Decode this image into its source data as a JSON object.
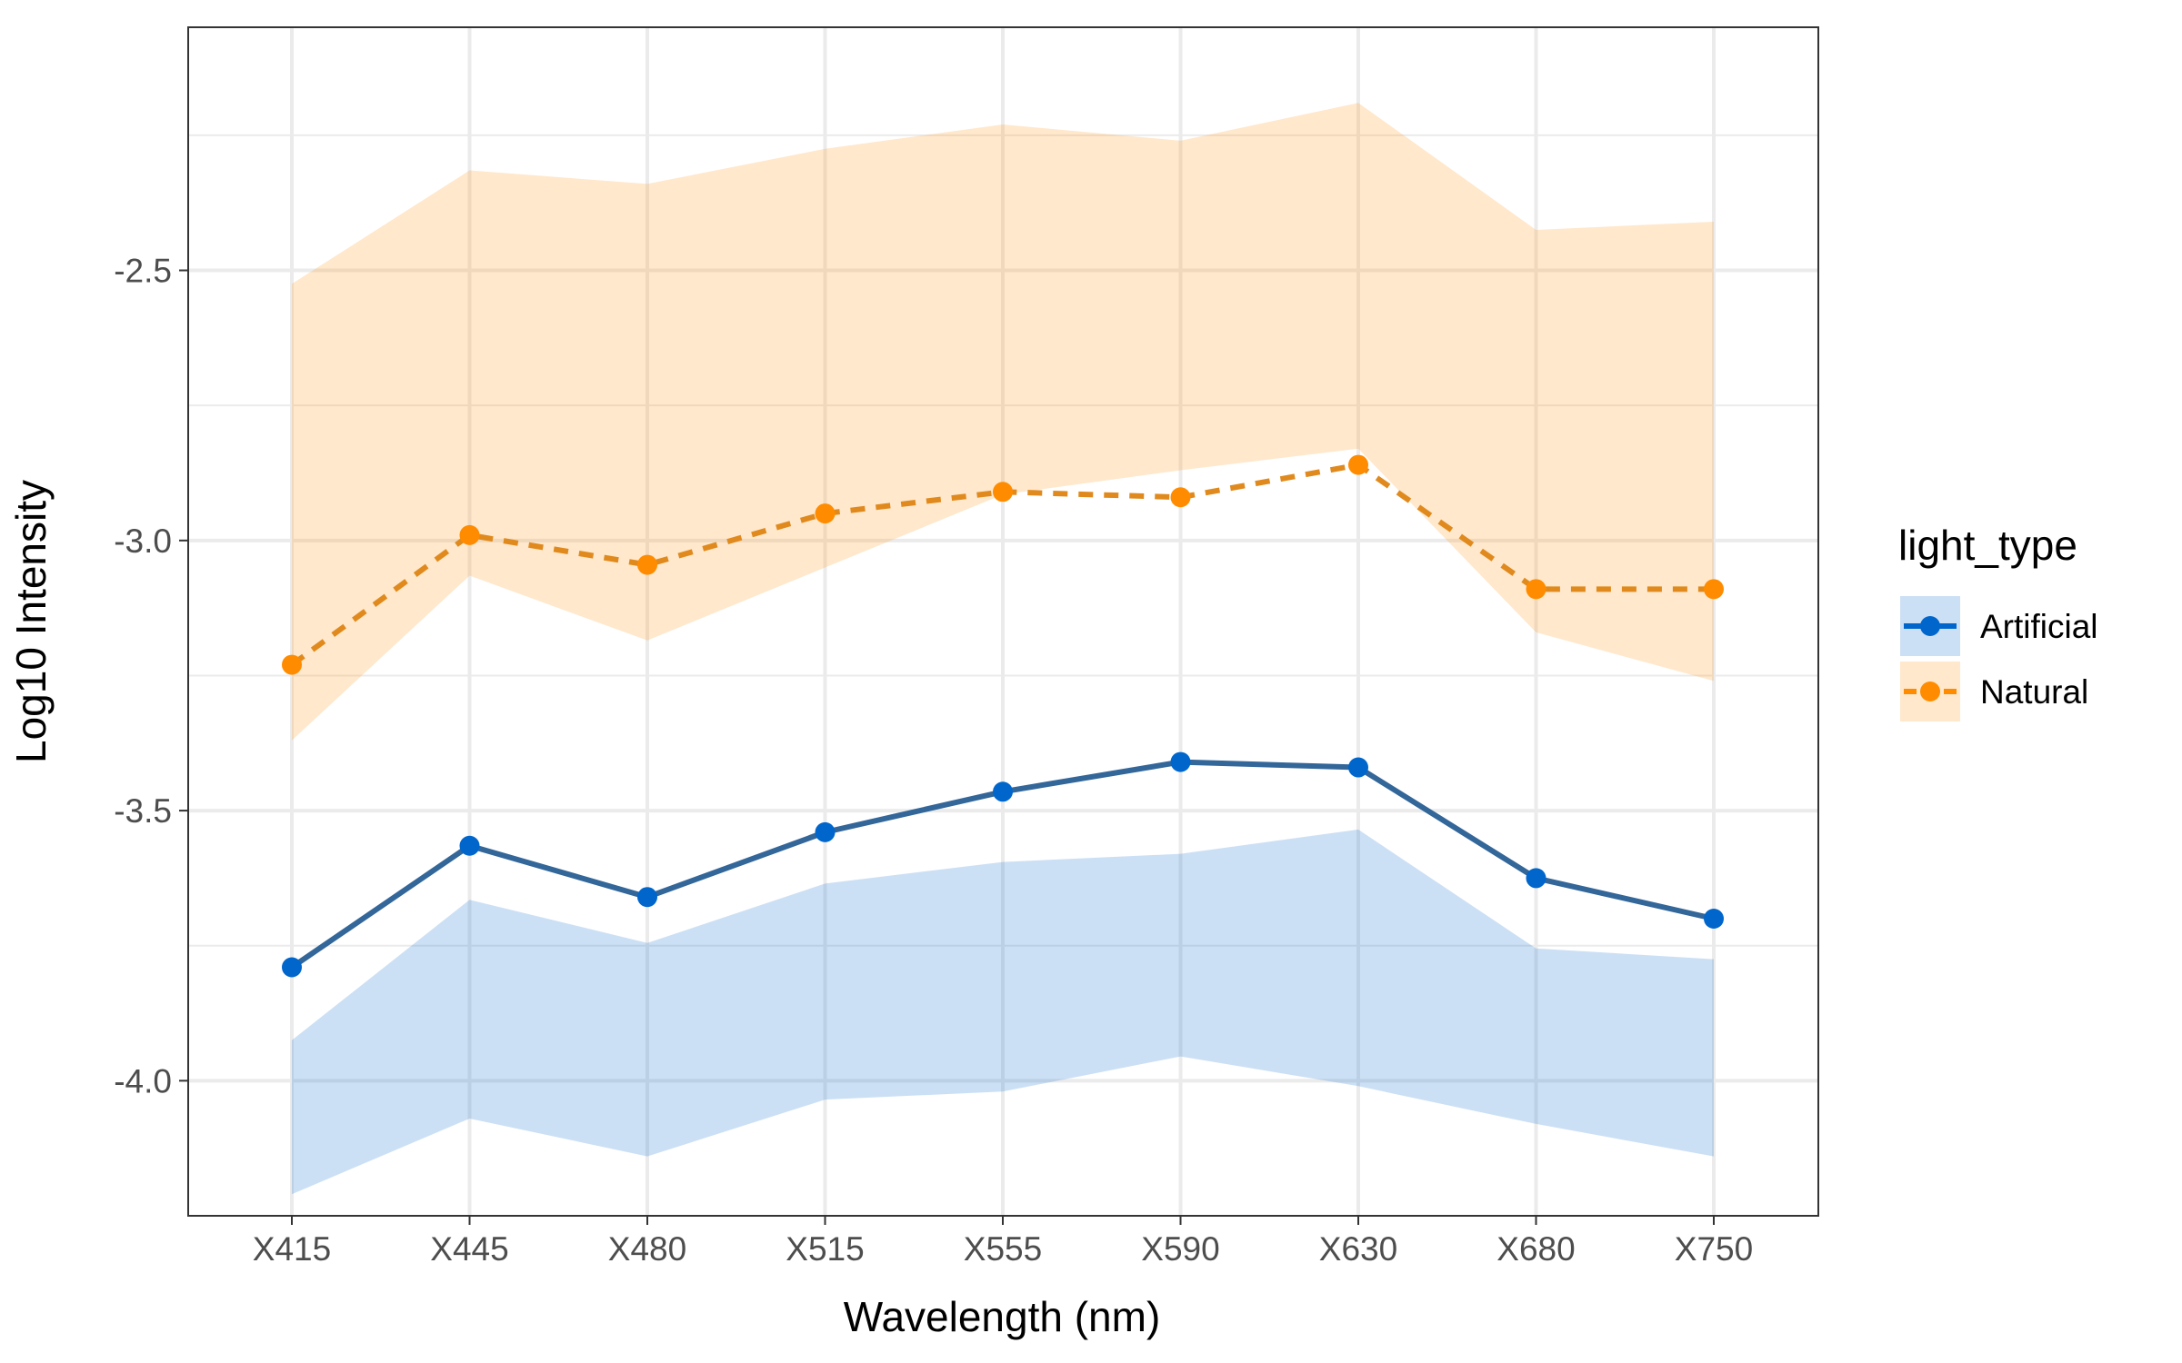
{
  "chart_data": {
    "type": "line",
    "title": "",
    "xlabel": "Wavelength (nm)",
    "ylabel": "Log10 Intensity",
    "categories": [
      "X415",
      "X445",
      "X480",
      "X515",
      "X555",
      "X590",
      "X630",
      "X680",
      "X750"
    ],
    "ylim": [
      -4.25,
      -2.05
    ],
    "y_ticks": [
      -4.0,
      -3.5,
      -3.0,
      -2.5
    ],
    "y_tick_labels": [
      "-4.0",
      "-3.5",
      "-3.0",
      "-2.5"
    ],
    "grid": true,
    "legend": {
      "title": "light_type",
      "position": "right"
    },
    "series": [
      {
        "name": "Artificial",
        "color": "#0066CC",
        "line_color": "#336699",
        "ribbon_color": "#cce0f5",
        "line_style": "solid",
        "values": [
          -3.79,
          -3.565,
          -3.66,
          -3.54,
          -3.465,
          -3.41,
          -3.42,
          -3.625,
          -3.7
        ],
        "lower": [
          -4.21,
          -4.07,
          -4.14,
          -4.035,
          -4.02,
          -3.955,
          -4.01,
          -4.08,
          -4.14
        ],
        "upper": [
          -3.925,
          -3.665,
          -3.745,
          -3.635,
          -3.595,
          -3.58,
          -3.535,
          -3.755,
          -3.775
        ]
      },
      {
        "name": "Natural",
        "color": "#FF8C00",
        "line_color": "#e08a1e",
        "ribbon_color": "#ffe6c8",
        "line_style": "dashed",
        "values": [
          -3.23,
          -2.99,
          -3.045,
          -2.95,
          -2.91,
          -2.92,
          -2.86,
          -3.09,
          -3.09
        ],
        "lower": [
          -3.37,
          -3.065,
          -3.185,
          -3.05,
          -2.915,
          -2.87,
          -2.83,
          -3.17,
          -3.26
        ],
        "upper": [
          -2.525,
          -2.315,
          -2.34,
          -2.275,
          -2.23,
          -2.26,
          -2.19,
          -2.425,
          -2.41
        ]
      }
    ]
  }
}
